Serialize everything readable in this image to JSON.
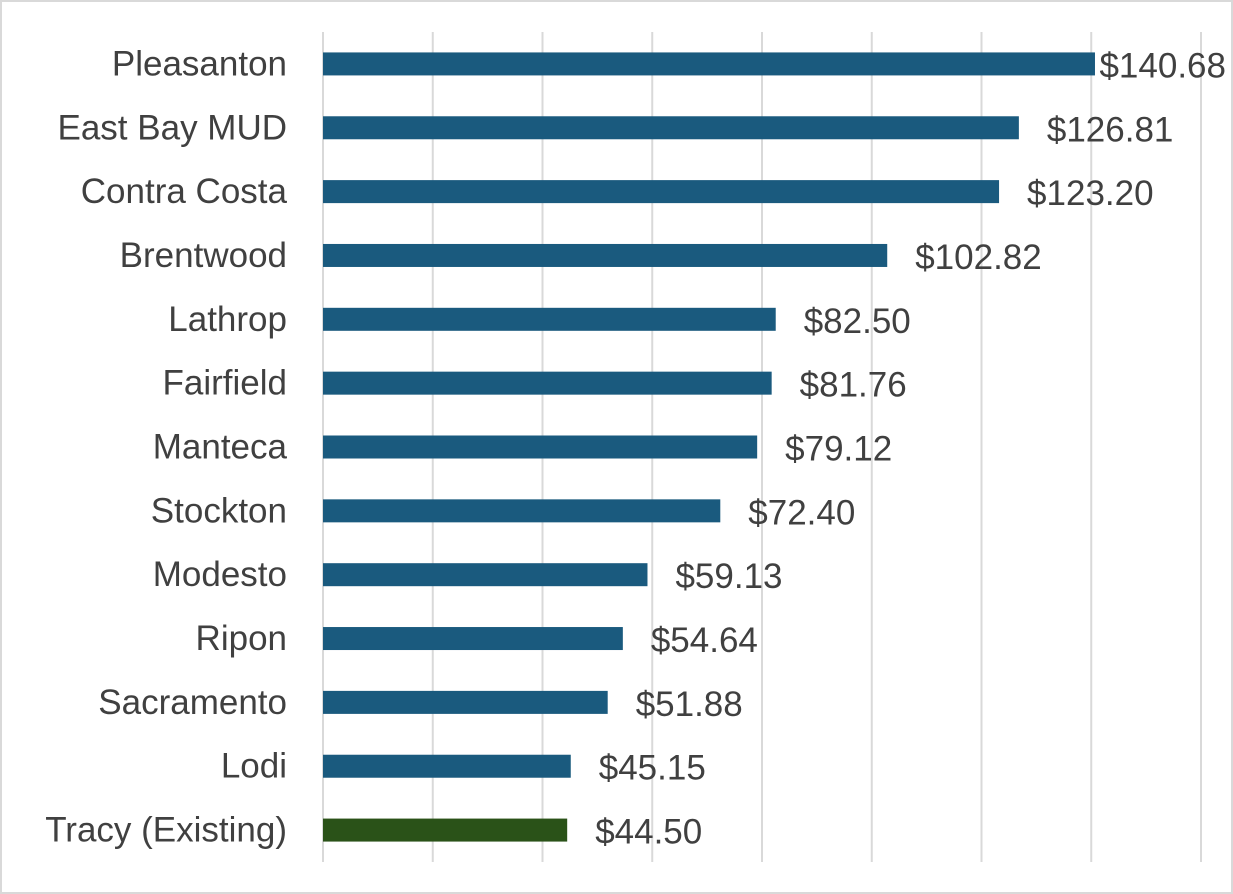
{
  "chart_data": {
    "type": "bar",
    "orientation": "horizontal",
    "title": "",
    "xlabel": "",
    "ylabel": "",
    "xlim": [
      0,
      160
    ],
    "grid": true,
    "legend": "none",
    "categories": [
      "Pleasanton",
      "East Bay MUD",
      "Contra Costa",
      "Brentwood",
      "Lathrop",
      "Fairfield",
      "Manteca",
      "Stockton",
      "Modesto",
      "Ripon",
      "Sacramento",
      "Lodi",
      "Tracy (Existing)"
    ],
    "values": [
      140.68,
      126.81,
      123.2,
      102.82,
      82.5,
      81.76,
      79.12,
      72.4,
      59.13,
      54.64,
      51.88,
      45.15,
      44.5
    ],
    "value_labels": [
      "$140.68",
      "$126.81",
      "$123.20",
      "$102.82",
      "$82.50",
      "$81.76",
      "$79.12",
      "$72.40",
      "$59.13",
      "$54.64",
      "$51.88",
      "$45.15",
      "$44.50"
    ],
    "colors": {
      "default": "#1a5a7e",
      "highlight": "#2a5218",
      "highlight_category": "Tracy (Existing)",
      "gridline": "#d9d9d9",
      "text": "#404040"
    }
  }
}
